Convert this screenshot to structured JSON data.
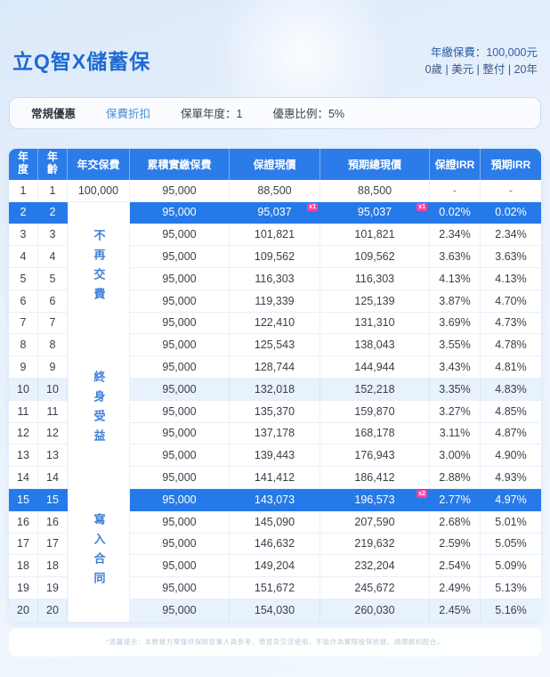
{
  "header": {
    "title": "立Q智X儲蓄保",
    "premium_line": "年繳保費：100,000元",
    "profile_line": "0歲 | 美元 | 整付 | 20年"
  },
  "promo_bar": {
    "label": "常規優惠",
    "type_label": "保費折扣",
    "policy_year": "保單年度：1",
    "discount_ratio": "優惠比例：5%"
  },
  "table": {
    "columns": [
      "年度",
      "年齡",
      "年交保費",
      "累積實繳保費",
      "保證現價",
      "預期總現價",
      "保證IRR",
      "預期IRR"
    ],
    "merged_notes": [
      "不再交費",
      "終身受益",
      "寫入合同"
    ],
    "rows": [
      {
        "cells": [
          "1",
          "1",
          "100,000",
          "95,000",
          "88,500",
          "88,500",
          "-",
          "-"
        ]
      },
      {
        "cells": [
          "2",
          "2",
          "",
          "95,000",
          "95,037",
          "95,037",
          "0.02%",
          "0.02%"
        ],
        "highlight": "strong",
        "badges": {
          "4": "x1",
          "5": "x1"
        }
      },
      {
        "cells": [
          "3",
          "3",
          "",
          "95,000",
          "101,821",
          "101,821",
          "2.34%",
          "2.34%"
        ]
      },
      {
        "cells": [
          "4",
          "4",
          "",
          "95,000",
          "109,562",
          "109,562",
          "3.63%",
          "3.63%"
        ]
      },
      {
        "cells": [
          "5",
          "5",
          "",
          "95,000",
          "116,303",
          "116,303",
          "4.13%",
          "4.13%"
        ]
      },
      {
        "cells": [
          "6",
          "6",
          "",
          "95,000",
          "119,339",
          "125,139",
          "3.87%",
          "4.70%"
        ]
      },
      {
        "cells": [
          "7",
          "7",
          "",
          "95,000",
          "122,410",
          "131,310",
          "3.69%",
          "4.73%"
        ]
      },
      {
        "cells": [
          "8",
          "8",
          "",
          "95,000",
          "125,543",
          "138,043",
          "3.55%",
          "4.78%"
        ]
      },
      {
        "cells": [
          "9",
          "9",
          "",
          "95,000",
          "128,744",
          "144,944",
          "3.43%",
          "4.81%"
        ]
      },
      {
        "cells": [
          "10",
          "10",
          "",
          "95,000",
          "132,018",
          "152,218",
          "3.35%",
          "4.83%"
        ],
        "highlight": "tint"
      },
      {
        "cells": [
          "11",
          "11",
          "",
          "95,000",
          "135,370",
          "159,870",
          "3.27%",
          "4.85%"
        ]
      },
      {
        "cells": [
          "12",
          "12",
          "",
          "95,000",
          "137,178",
          "168,178",
          "3.11%",
          "4.87%"
        ]
      },
      {
        "cells": [
          "13",
          "13",
          "",
          "95,000",
          "139,443",
          "176,943",
          "3.00%",
          "4.90%"
        ]
      },
      {
        "cells": [
          "14",
          "14",
          "",
          "95,000",
          "141,412",
          "186,412",
          "2.88%",
          "4.93%"
        ]
      },
      {
        "cells": [
          "15",
          "15",
          "",
          "95,000",
          "143,073",
          "196,573",
          "2.77%",
          "4.97%"
        ],
        "highlight": "strong",
        "badges": {
          "5": "x2"
        }
      },
      {
        "cells": [
          "16",
          "16",
          "",
          "95,000",
          "145,090",
          "207,590",
          "2.68%",
          "5.01%"
        ]
      },
      {
        "cells": [
          "17",
          "17",
          "",
          "95,000",
          "146,632",
          "219,632",
          "2.59%",
          "5.05%"
        ]
      },
      {
        "cells": [
          "18",
          "18",
          "",
          "95,000",
          "149,204",
          "232,204",
          "2.54%",
          "5.09%"
        ]
      },
      {
        "cells": [
          "19",
          "19",
          "",
          "95,000",
          "151,672",
          "245,672",
          "2.49%",
          "5.13%"
        ]
      },
      {
        "cells": [
          "20",
          "20",
          "",
          "95,000",
          "154,030",
          "260,030",
          "2.45%",
          "5.16%"
        ],
        "highlight": "tint"
      }
    ]
  },
  "footer": {
    "disclaimer": "*溫馨提示：本數據方案僅供保險從業人員參考、學習及交流使用，不能作為實際投保依據，請理解和配合。"
  },
  "colors": {
    "accent_blue": "#2b7ce9",
    "highlight_row": "#2679e8",
    "title_blue": "#1c6bd3",
    "note_blue": "#3f7fd6",
    "badge_pink": "#ff3fa4"
  }
}
